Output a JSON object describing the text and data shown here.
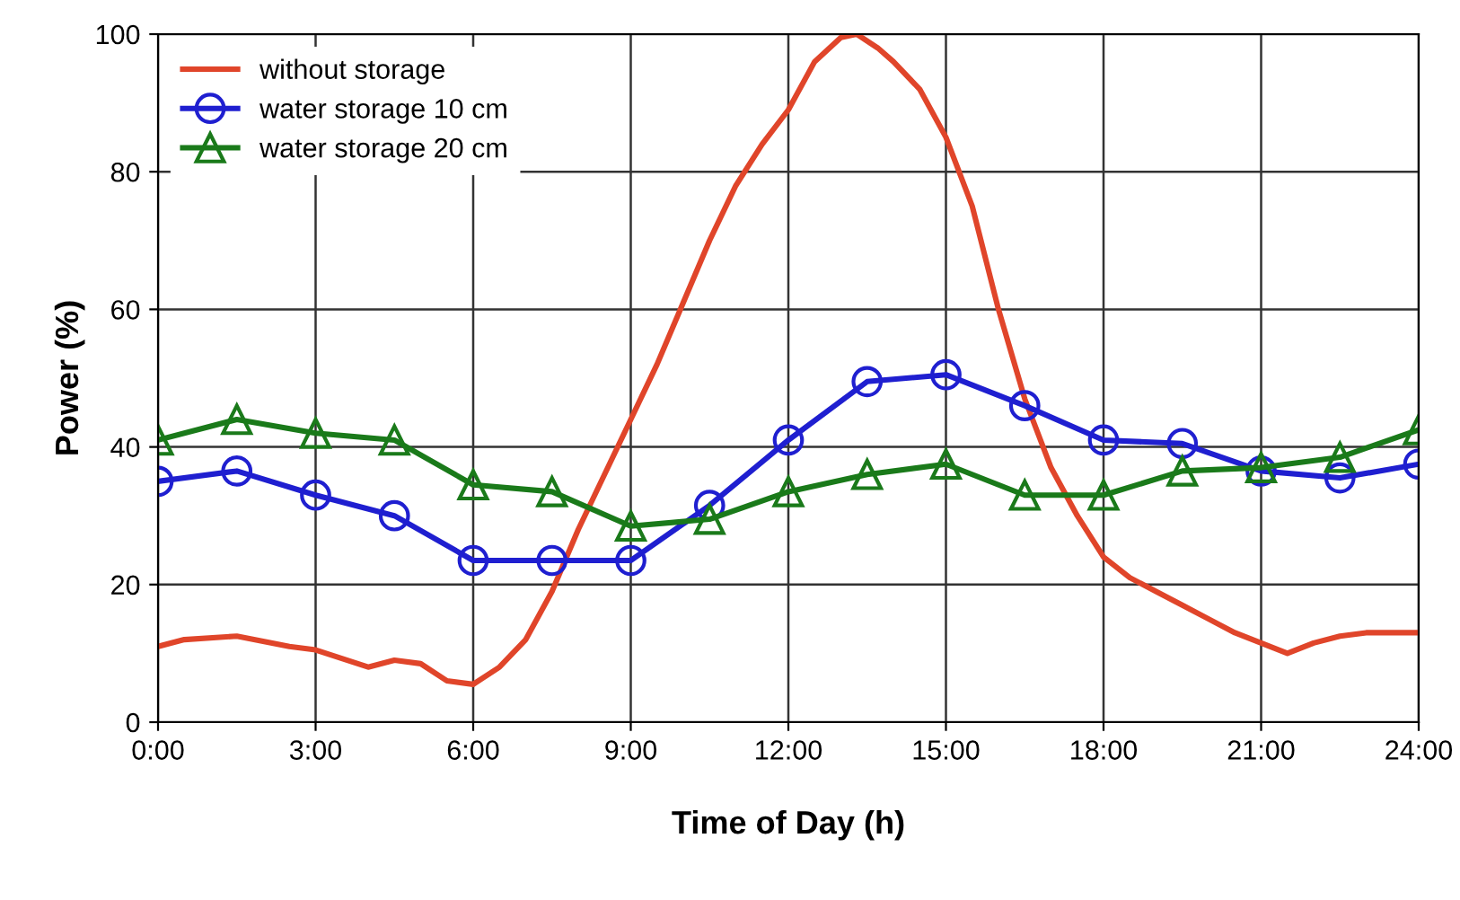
{
  "chart_data": {
    "type": "line",
    "xlabel": "Time of Day (h)",
    "ylabel": "Power (%)",
    "xlim": [
      0,
      24
    ],
    "ylim": [
      0,
      100
    ],
    "xticks": [
      {
        "value": 0,
        "label": "0:00"
      },
      {
        "value": 3,
        "label": "3:00"
      },
      {
        "value": 6,
        "label": "6:00"
      },
      {
        "value": 9,
        "label": "9:00"
      },
      {
        "value": 12,
        "label": "12:00"
      },
      {
        "value": 15,
        "label": "15:00"
      },
      {
        "value": 18,
        "label": "18:00"
      },
      {
        "value": 21,
        "label": "21:00"
      },
      {
        "value": 24,
        "label": "24:00"
      }
    ],
    "yticks": [
      0,
      20,
      40,
      60,
      80,
      100
    ],
    "grid": true,
    "legend": "top left",
    "series": [
      {
        "name": "without storage",
        "color": "#e0452a",
        "marker": "none",
        "x": [
          0,
          0.5,
          1.5,
          2.5,
          3,
          4,
          4.5,
          5,
          5.5,
          6,
          6.5,
          7,
          7.5,
          8,
          8.5,
          9,
          9.5,
          10,
          10.5,
          11,
          11.5,
          12,
          12.5,
          13,
          13.3,
          13.7,
          14,
          14.5,
          15,
          15.5,
          16,
          16.5,
          17,
          17.5,
          18,
          18.5,
          19,
          19.5,
          20,
          20.5,
          21,
          21.5,
          22,
          22.5,
          23,
          23.5,
          24
        ],
        "values": [
          11,
          12,
          12.5,
          11,
          10.5,
          8,
          9,
          8.5,
          6,
          5.5,
          8,
          12,
          19,
          28,
          36,
          44,
          52,
          61,
          70,
          78,
          84,
          89,
          96,
          99.5,
          100,
          98,
          96,
          92,
          85,
          75,
          60,
          47,
          37,
          30,
          24,
          21,
          19,
          17,
          15,
          13,
          11.5,
          10,
          11.5,
          12.5,
          13,
          13,
          13
        ]
      },
      {
        "name": "water storage 10 cm",
        "color": "#1f1fd0",
        "marker": "circle",
        "x": [
          0,
          1.5,
          3,
          4.5,
          6,
          7.5,
          9,
          10.5,
          12,
          13.5,
          15,
          16.5,
          18,
          19.5,
          21,
          22.5,
          24
        ],
        "values": [
          35,
          36.5,
          33,
          30,
          23.5,
          23.5,
          23.5,
          31.5,
          41,
          49.5,
          50.5,
          46,
          41,
          40.5,
          36.5,
          35.5,
          37.5
        ]
      },
      {
        "name": "water storage 20 cm",
        "color": "#1a7a1a",
        "marker": "triangle",
        "x": [
          0,
          1.5,
          3,
          4.5,
          6,
          7.5,
          9,
          10.5,
          12,
          13.5,
          15,
          16.5,
          18,
          19.5,
          21,
          22.5,
          24
        ],
        "values": [
          41,
          44,
          42,
          41,
          34.5,
          33.5,
          28.5,
          29.5,
          33.5,
          36,
          37.5,
          33,
          33,
          36.5,
          37,
          38.5,
          42.5
        ]
      }
    ]
  }
}
